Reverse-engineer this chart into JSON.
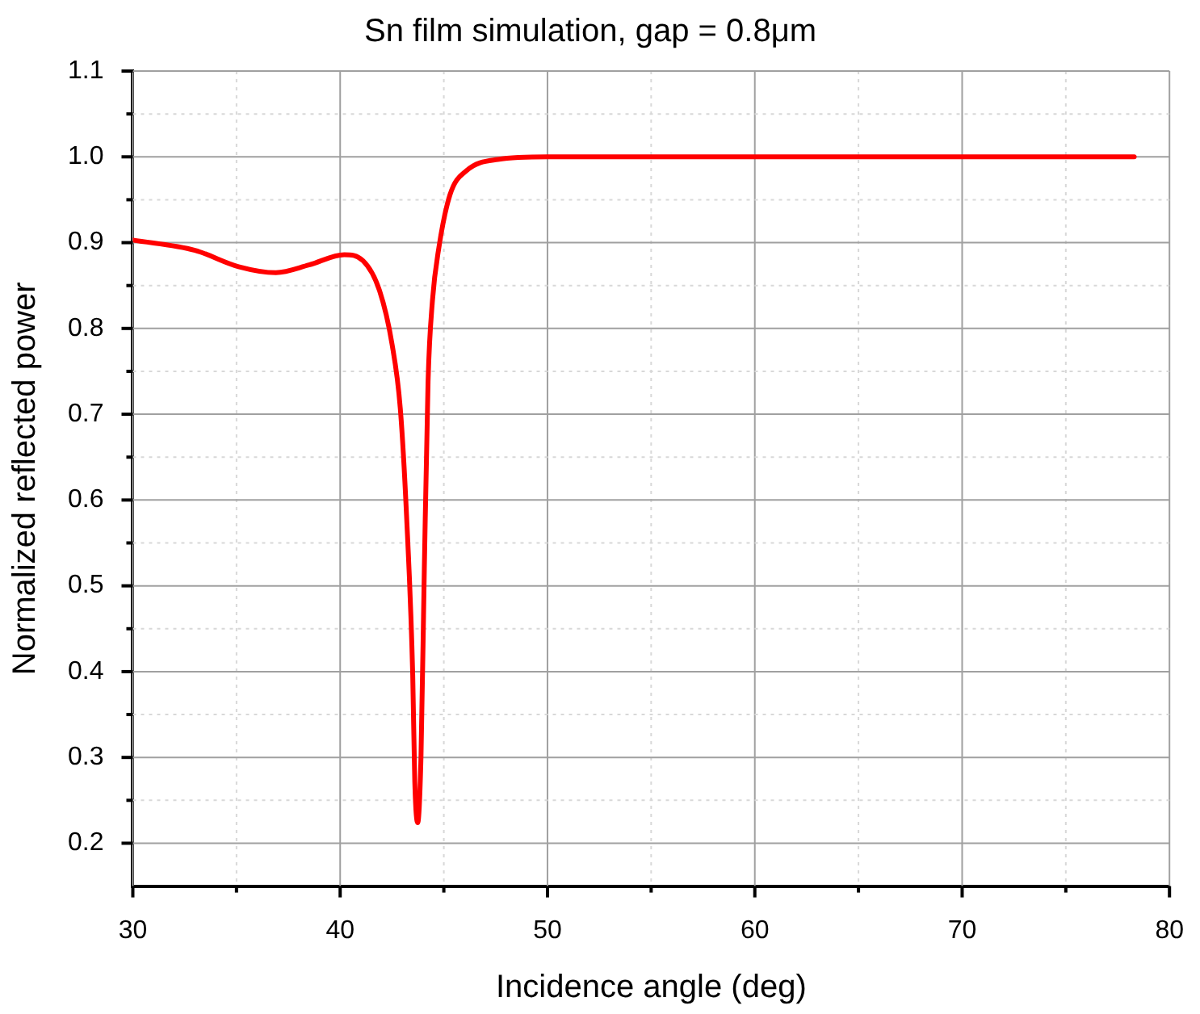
{
  "chart_data": {
    "type": "line",
    "title": "Sn film simulation, gap = 0.8μm",
    "xlabel": "Incidence angle (deg)",
    "ylabel": "Normalized reflected power",
    "x": [
      30,
      33.0,
      35.1,
      36.9,
      38.5,
      40.2,
      41.1,
      41.9,
      42.5,
      42.9,
      43.2,
      43.5,
      43.6,
      43.74,
      43.9,
      44.06,
      44.24,
      44.45,
      44.76,
      45.3,
      46.1,
      47.6,
      50,
      78.3
    ],
    "series": [
      {
        "color": "#ff0000",
        "values": [
          0.903,
          0.891,
          0.872,
          0.865,
          0.874,
          0.886,
          0.879,
          0.844,
          0.782,
          0.707,
          0.583,
          0.396,
          0.271,
          0.224,
          0.302,
          0.52,
          0.738,
          0.832,
          0.894,
          0.956,
          0.984,
          0.997,
          1.0,
          1.0
        ]
      }
    ],
    "xlim": [
      30,
      80
    ],
    "xticks": [
      30,
      {
        "value": 35,
        "label": null
      },
      40,
      {
        "value": 45,
        "label": null
      },
      50,
      {
        "value": 55,
        "label": null
      },
      60,
      {
        "value": 65,
        "label": null
      },
      70,
      {
        "value": 75,
        "label": null
      },
      80
    ],
    "ylim": [
      0.15,
      1.1
    ],
    "yticks": [
      0.2,
      {
        "value": 0.25,
        "label": null
      },
      0.3,
      {
        "value": 0.35,
        "label": null
      },
      0.4,
      {
        "value": 0.45,
        "label": null
      },
      0.5,
      {
        "value": 0.55,
        "label": null
      },
      0.6,
      {
        "value": 0.65,
        "label": null
      },
      0.7,
      {
        "value": 0.75,
        "label": null
      },
      0.8,
      {
        "value": 0.85,
        "label": null
      },
      0.9,
      {
        "value": 0.95,
        "label": null
      },
      {
        "value": 1.0,
        "label": "1.0"
      },
      {
        "value": 1.05,
        "label": null
      },
      1.1
    ],
    "grid": true,
    "legend": false,
    "marker": "none",
    "line_style": "solid"
  }
}
